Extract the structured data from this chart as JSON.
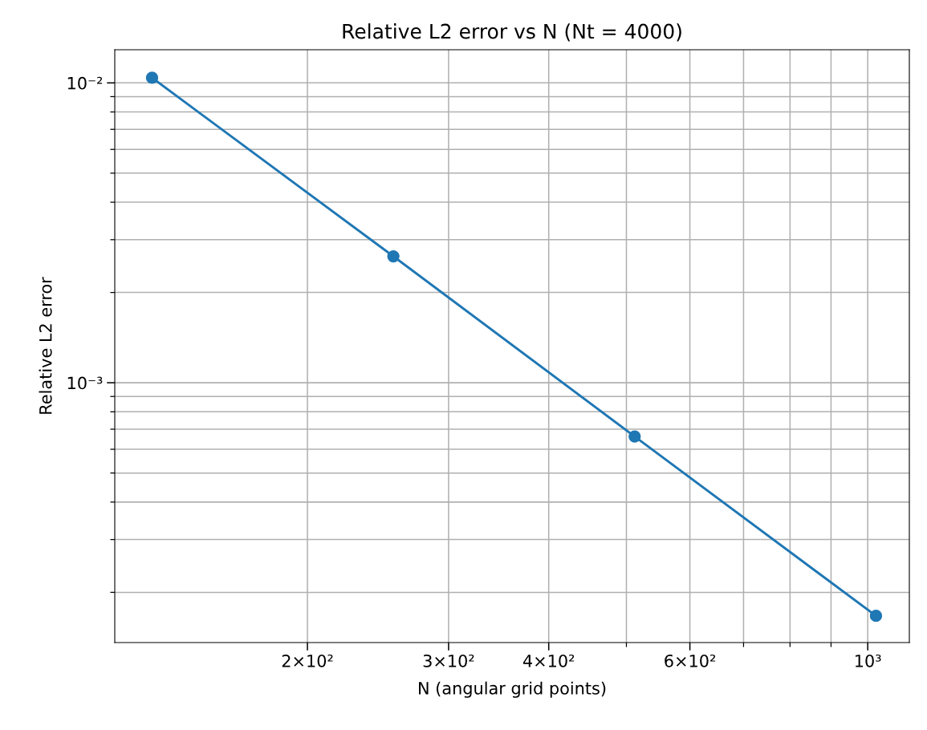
{
  "chart_data": {
    "type": "line",
    "title": "Relative L2 error vs N (Nt = 4000)",
    "xlabel": "N (angular grid points)",
    "ylabel": "Relative L2 error",
    "x": [
      128,
      256,
      512,
      1024
    ],
    "series": [
      {
        "color": "#1f77b4",
        "values": [
          0.0104,
          0.00264,
          0.000662,
          0.000167
        ]
      }
    ],
    "log": "xy",
    "grid": true,
    "marker": "circle",
    "line_style": "solid",
    "xlim": [
      115,
      1127
    ],
    "ylim": [
      0.000136,
      0.0129
    ],
    "xticks": [
      {
        "value": 200,
        "label": "2×10²"
      },
      {
        "value": 300,
        "label": "3×10²"
      },
      {
        "value": 400,
        "label": "4×10²"
      },
      {
        "value": 500,
        "label": null
      },
      {
        "value": 600,
        "label": "6×10²"
      },
      {
        "value": 700,
        "label": null
      },
      {
        "value": 800,
        "label": null
      },
      {
        "value": 900,
        "label": null
      },
      {
        "value": 1000,
        "label": "10³"
      }
    ],
    "yticks": [
      {
        "value": 0.0002,
        "label": null
      },
      {
        "value": 0.0003,
        "label": null
      },
      {
        "value": 0.0004,
        "label": null
      },
      {
        "value": 0.0005,
        "label": null
      },
      {
        "value": 0.0006,
        "label": null
      },
      {
        "value": 0.0007,
        "label": null
      },
      {
        "value": 0.0008,
        "label": null
      },
      {
        "value": 0.0009,
        "label": null
      },
      {
        "value": 0.001,
        "label": "10⁻³"
      },
      {
        "value": 0.002,
        "label": null
      },
      {
        "value": 0.003,
        "label": null
      },
      {
        "value": 0.004,
        "label": null
      },
      {
        "value": 0.005,
        "label": null
      },
      {
        "value": 0.006,
        "label": null
      },
      {
        "value": 0.007,
        "label": null
      },
      {
        "value": 0.008,
        "label": null
      },
      {
        "value": 0.009,
        "label": null
      },
      {
        "value": 0.01,
        "label": "10⁻²"
      }
    ]
  }
}
